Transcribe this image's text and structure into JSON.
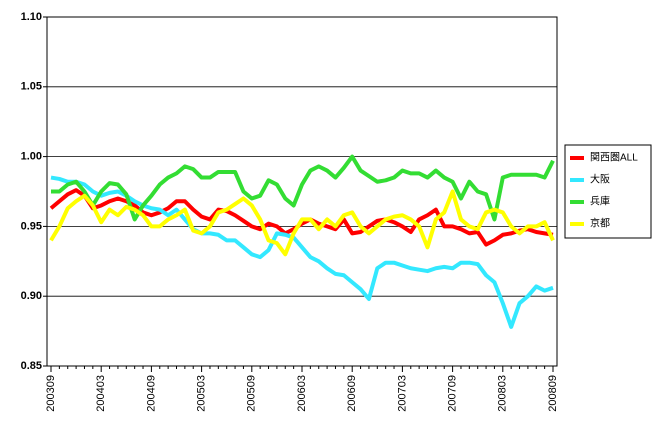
{
  "chart_data": {
    "type": "line",
    "categories": [
      "200309",
      null,
      null,
      null,
      null,
      null,
      "200403",
      null,
      null,
      null,
      null,
      null,
      "200409",
      null,
      null,
      null,
      null,
      null,
      "200503",
      null,
      null,
      null,
      null,
      null,
      "200509",
      null,
      null,
      null,
      null,
      null,
      "200603",
      null,
      null,
      null,
      null,
      null,
      "200609",
      null,
      null,
      null,
      null,
      null,
      "200703",
      null,
      null,
      null,
      null,
      null,
      "200709",
      null,
      null,
      null,
      null,
      null,
      "200803",
      null,
      null,
      null,
      null,
      null,
      "200809"
    ],
    "series": [
      {
        "name": "関西圏ALL",
        "color": "#ff0000",
        "values": [
          0.963,
          0.968,
          0.973,
          0.976,
          0.972,
          0.963,
          0.965,
          0.968,
          0.97,
          0.968,
          0.965,
          0.96,
          0.958,
          0.96,
          0.963,
          0.968,
          0.968,
          0.962,
          0.957,
          0.955,
          0.962,
          0.961,
          0.958,
          0.954,
          0.95,
          0.948,
          0.952,
          0.95,
          0.945,
          0.948,
          0.952,
          0.955,
          0.952,
          0.95,
          0.948,
          0.955,
          0.945,
          0.946,
          0.95,
          0.954,
          0.955,
          0.953,
          0.95,
          0.946,
          0.955,
          0.958,
          0.962,
          0.95,
          0.95,
          0.948,
          0.945,
          0.946,
          0.937,
          0.94,
          0.944,
          0.945,
          0.947,
          0.948,
          0.946,
          0.945,
          0.944
        ]
      },
      {
        "name": "大阪",
        "color": "#33e8ff",
        "values": [
          0.985,
          0.984,
          0.982,
          0.982,
          0.98,
          0.975,
          0.972,
          0.974,
          0.975,
          0.972,
          0.968,
          0.965,
          0.963,
          0.962,
          0.958,
          0.962,
          0.955,
          0.948,
          0.945,
          0.945,
          0.944,
          0.94,
          0.94,
          0.935,
          0.93,
          0.928,
          0.933,
          0.945,
          0.944,
          0.942,
          0.935,
          0.928,
          0.925,
          0.92,
          0.916,
          0.915,
          0.91,
          0.905,
          0.898,
          0.92,
          0.924,
          0.924,
          0.922,
          0.92,
          0.919,
          0.918,
          0.92,
          0.921,
          0.92,
          0.924,
          0.924,
          0.923,
          0.915,
          0.91,
          0.895,
          0.878,
          0.895,
          0.9,
          0.907,
          0.904,
          0.906
        ]
      },
      {
        "name": "兵庫",
        "color": "#33dd33",
        "values": [
          0.975,
          0.975,
          0.98,
          0.982,
          0.975,
          0.965,
          0.975,
          0.981,
          0.98,
          0.973,
          0.955,
          0.965,
          0.972,
          0.98,
          0.985,
          0.988,
          0.993,
          0.991,
          0.985,
          0.985,
          0.989,
          0.989,
          0.989,
          0.975,
          0.97,
          0.972,
          0.983,
          0.98,
          0.97,
          0.965,
          0.98,
          0.99,
          0.993,
          0.99,
          0.985,
          0.992,
          1.0,
          0.99,
          0.986,
          0.982,
          0.983,
          0.985,
          0.99,
          0.988,
          0.988,
          0.985,
          0.99,
          0.985,
          0.982,
          0.97,
          0.982,
          0.975,
          0.973,
          0.955,
          0.985,
          0.987,
          0.987,
          0.987,
          0.987,
          0.985,
          0.997
        ]
      },
      {
        "name": "京都",
        "color": "#ffff00",
        "values": [
          0.94,
          0.95,
          0.963,
          0.968,
          0.972,
          0.965,
          0.953,
          0.962,
          0.958,
          0.964,
          0.962,
          0.958,
          0.95,
          0.95,
          0.955,
          0.958,
          0.962,
          0.947,
          0.945,
          0.95,
          0.96,
          0.962,
          0.966,
          0.97,
          0.965,
          0.955,
          0.94,
          0.938,
          0.93,
          0.945,
          0.955,
          0.955,
          0.948,
          0.955,
          0.95,
          0.958,
          0.96,
          0.95,
          0.945,
          0.95,
          0.955,
          0.957,
          0.958,
          0.955,
          0.95,
          0.935,
          0.955,
          0.96,
          0.975,
          0.955,
          0.95,
          0.948,
          0.96,
          0.962,
          0.96,
          0.95,
          0.945,
          0.95,
          0.95,
          0.953,
          0.94
        ]
      }
    ],
    "ylim": [
      0.85,
      1.1
    ],
    "yticks": [
      {
        "value": 0.85,
        "label": "0.85"
      },
      {
        "value": 0.9,
        "label": "0.90"
      },
      {
        "value": 0.95,
        "label": "0.95"
      },
      {
        "value": 1.0,
        "label": "1.00"
      },
      {
        "value": 1.05,
        "label": "1.05"
      },
      {
        "value": 1.1,
        "label": "1.10"
      }
    ],
    "grid": true
  }
}
